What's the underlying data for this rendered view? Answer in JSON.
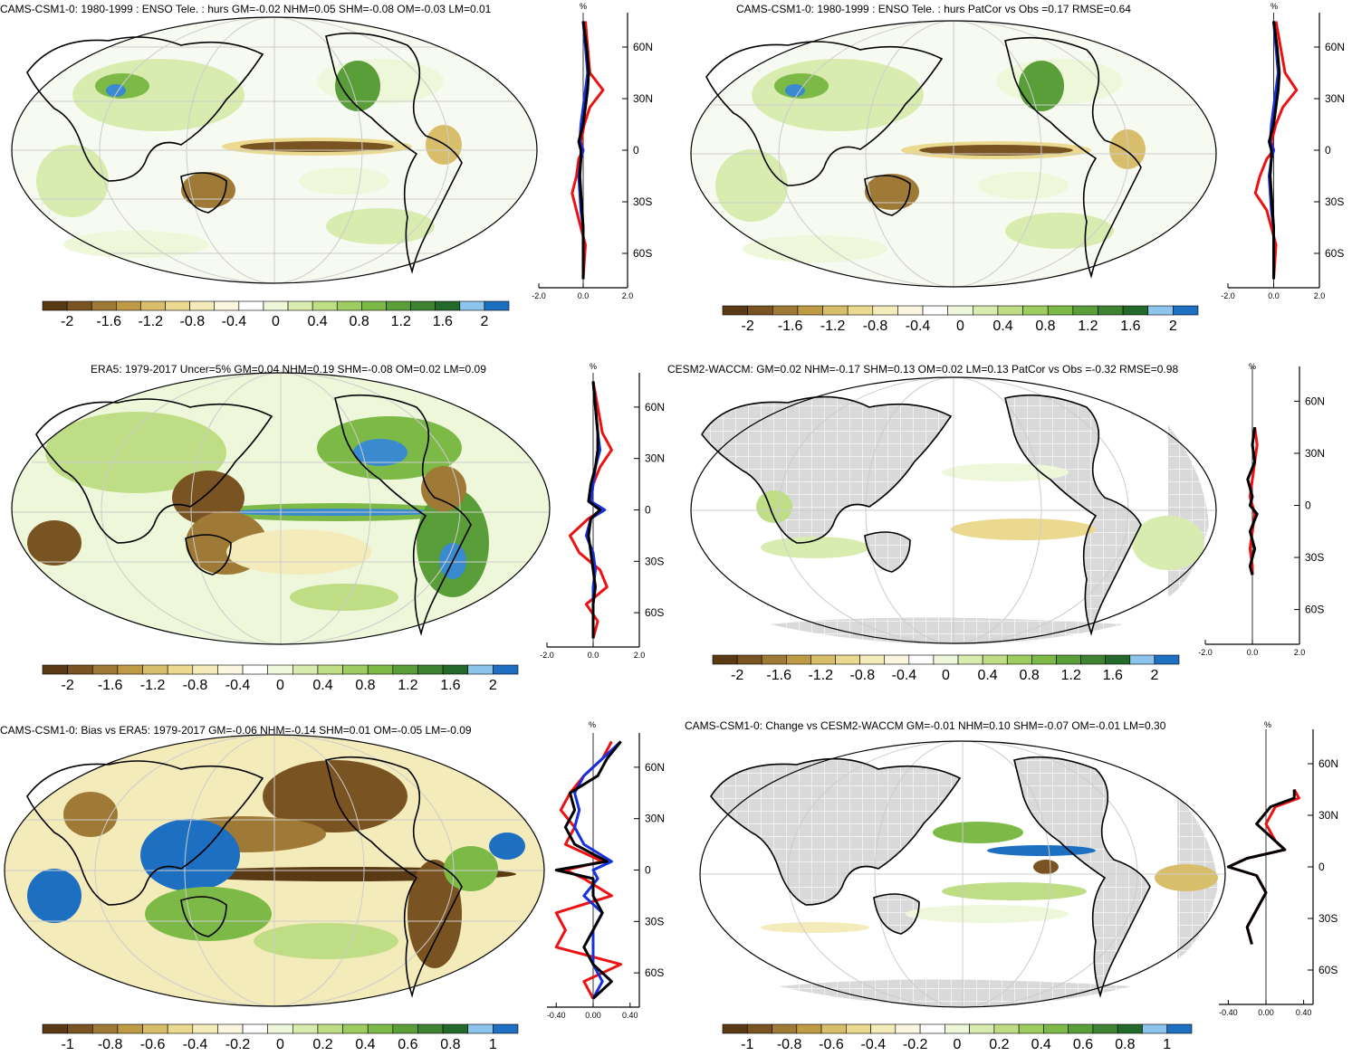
{
  "colors": {
    "scale": [
      "#5a3a14",
      "#7a5322",
      "#9e7a36",
      "#bf9a45",
      "#d8be6a",
      "#ead98f",
      "#f4ebbb",
      "#fbf6df",
      "#ffffff",
      "#eef7da",
      "#d8ecb0",
      "#bedd85",
      "#9fcc60",
      "#7db947",
      "#5a9e39",
      "#3d8332",
      "#236a2a",
      "#8cc4ec",
      "#1d6fc2"
    ],
    "land_gray": "#d9d9d9",
    "grid": "#c8c8c8",
    "model_line": "#1530e0",
    "obs_line": "#ee1111",
    "mean_line": "#000000"
  },
  "panels": [
    {
      "title": "CAMS-CSM1-0: 1980-1999 : ENSO Tele. : hurs GM=-0.02 NHM=0.05 SHM=-0.08 OM=-0.03 LM=0.01",
      "colorbar_labels": [
        "-2",
        "-1.6",
        "-1.2",
        "-0.8",
        "-0.4",
        "0",
        "0.4",
        "0.8",
        "1.2",
        "1.6",
        "2"
      ],
      "profile": {
        "unit": "%",
        "lat_labels": [
          "60N",
          "30N",
          "0",
          "30S",
          "60S"
        ],
        "x_labels": [
          "-2.0",
          "0.0",
          "2.0"
        ]
      }
    },
    {
      "title": "CAMS-CSM1-0: 1980-1999 : ENSO Tele. : hurs PatCor vs Obs =0.17 RMSE=0.64",
      "colorbar_labels": [
        "-2",
        "-1.6",
        "-1.2",
        "-0.8",
        "-0.4",
        "0",
        "0.4",
        "0.8",
        "1.2",
        "1.6",
        "2"
      ],
      "profile": {
        "unit": "%",
        "lat_labels": [
          "60N",
          "30N",
          "0",
          "30S",
          "60S"
        ],
        "x_labels": [
          "-2.0",
          "0.0",
          "2.0"
        ]
      }
    },
    {
      "title": "ERA5: 1979-2017 Uncer=5% GM=0.04 NHM=0.19 SHM=-0.08 OM=0.02 LM=0.09",
      "colorbar_labels": [
        "-2",
        "-1.6",
        "-1.2",
        "-0.8",
        "-0.4",
        "0",
        "0.4",
        "0.8",
        "1.2",
        "1.6",
        "2"
      ],
      "profile": {
        "unit": "%",
        "lat_labels": [
          "60N",
          "30N",
          "0",
          "30S",
          "60S"
        ],
        "x_labels": [
          "-2.0",
          "0.0",
          "2.0"
        ]
      }
    },
    {
      "title": "CESM2-WACCM: GM=0.02 NHM=-0.17 SHM=0.13 OM=0.02 LM=0.13 PatCor vs Obs =-0.32 RMSE=0.98",
      "colorbar_labels": [
        "-2",
        "-1.6",
        "-1.2",
        "-0.8",
        "-0.4",
        "0",
        "0.4",
        "0.8",
        "1.2",
        "1.6",
        "2"
      ],
      "profile": {
        "unit": "%",
        "lat_labels": [
          "60N",
          "30N",
          "0",
          "30S",
          "60S"
        ],
        "x_labels": [
          "-2.0",
          "0.0",
          "2.0"
        ]
      }
    },
    {
      "title": "CAMS-CSM1-0: Bias vs ERA5: 1979-2017 GM=-0.06 NHM=-0.14 SHM=0.01 OM=-0.05 LM=-0.09",
      "colorbar_labels": [
        "-1",
        "-0.8",
        "-0.6",
        "-0.4",
        "-0.2",
        "0",
        "0.2",
        "0.4",
        "0.6",
        "0.8",
        "1"
      ],
      "profile": {
        "unit": "%",
        "lat_labels": [
          "60N",
          "30N",
          "0",
          "30S",
          "60S"
        ],
        "x_labels": [
          "-0.40",
          "0.00",
          "0.40"
        ]
      }
    },
    {
      "title": "CAMS-CSM1-0: Change vs CESM2-WACCM GM=-0.01 NHM=0.10 SHM=-0.07 OM=-0.01 LM=0.30",
      "colorbar_labels": [
        "-1",
        "-0.8",
        "-0.6",
        "-0.4",
        "-0.2",
        "0",
        "0.2",
        "0.4",
        "0.6",
        "0.8",
        "1"
      ],
      "profile": {
        "unit": "%",
        "lat_labels": [
          "60N",
          "30N",
          "0",
          "30S",
          "60S"
        ],
        "x_labels": [
          "-0.40",
          "0.00",
          "0.40"
        ]
      }
    }
  ],
  "chart_data": [
    {
      "type": "heatmap",
      "title": "CAMS-CSM1-0: 1980-1999 : ENSO Tele. : hurs GM=-0.02 NHM=0.05 SHM=-0.08 OM=-0.03 LM=0.01",
      "colorbar": {
        "levels": [
          -2.2,
          -2,
          -1.8,
          -1.6,
          -1.4,
          -1.2,
          -1,
          -0.8,
          -0.6,
          -0.4,
          -0.2,
          0.2,
          0.4,
          0.6,
          0.8,
          1,
          1.2,
          1.4,
          1.6,
          2
        ],
        "ticks": [
          "-2",
          "-1.6",
          "-1.2",
          "-0.8",
          "-0.4",
          "0",
          "0.4",
          "0.8",
          "1.2",
          "1.6",
          "2"
        ]
      },
      "zonal_profile": {
        "unit": "%",
        "xlim": [
          -2,
          2
        ],
        "ylim": [
          -80,
          80
        ],
        "lat": [
          75,
          60,
          45,
          35,
          25,
          15,
          5,
          0,
          -5,
          -15,
          -25,
          -35,
          -45,
          -55,
          -65,
          -75
        ],
        "series": [
          {
            "color": "red",
            "values": [
              0.1,
              0.2,
              0.3,
              0.9,
              0.3,
              0.05,
              -0.1,
              0.0,
              -0.2,
              -0.3,
              -0.5,
              -0.3,
              -0.1,
              0.1,
              0.05,
              0.0
            ]
          },
          {
            "color": "blue",
            "values": [
              0.0,
              0.1,
              0.2,
              0.1,
              0.0,
              -0.1,
              -0.15,
              0.0,
              -0.1,
              -0.2,
              -0.15,
              -0.1,
              0.0,
              0.0,
              0.0,
              0.0
            ]
          },
          {
            "color": "black",
            "values": [
              0.0,
              0.15,
              0.25,
              0.2,
              0.1,
              0.0,
              -0.2,
              -0.1,
              -0.1,
              -0.15,
              -0.1,
              -0.05,
              0.0,
              0.0,
              0.0,
              0.0
            ]
          }
        ]
      }
    },
    {
      "type": "heatmap",
      "title": "CAMS-CSM1-0: 1980-1999 : ENSO Tele. : hurs PatCor vs Obs =0.17 RMSE=0.64",
      "colorbar": {
        "ticks": [
          "-2",
          "-1.6",
          "-1.2",
          "-0.8",
          "-0.4",
          "0",
          "0.4",
          "0.8",
          "1.2",
          "1.6",
          "2"
        ]
      },
      "zonal_profile": {
        "unit": "%",
        "xlim": [
          -2,
          2
        ],
        "ylim": [
          -80,
          80
        ],
        "lat": [
          75,
          60,
          45,
          35,
          25,
          15,
          5,
          0,
          -5,
          -15,
          -25,
          -35,
          -45,
          -55,
          -65,
          -75
        ],
        "series": [
          {
            "color": "red",
            "values": [
              0.1,
              0.3,
              0.5,
              1.0,
              0.4,
              0.1,
              -0.1,
              0.0,
              -0.3,
              -0.6,
              -0.8,
              -0.3,
              -0.1,
              0.1,
              0.05,
              0.0
            ]
          },
          {
            "color": "blue",
            "values": [
              0.0,
              0.1,
              0.2,
              0.1,
              0.0,
              -0.1,
              -0.15,
              0.0,
              -0.1,
              -0.2,
              -0.15,
              -0.1,
              0.0,
              0.0,
              0.0,
              0.0
            ]
          },
          {
            "color": "black",
            "values": [
              0.0,
              0.15,
              0.25,
              0.2,
              0.1,
              0.0,
              -0.2,
              -0.1,
              -0.1,
              -0.15,
              -0.1,
              -0.05,
              0.0,
              0.0,
              0.0,
              0.0
            ]
          }
        ]
      }
    },
    {
      "type": "heatmap",
      "title": "ERA5: 1979-2017 Uncer=5% GM=0.04 NHM=0.19 SHM=-0.08 OM=0.02 LM=0.09",
      "colorbar": {
        "ticks": [
          "-2",
          "-1.6",
          "-1.2",
          "-0.8",
          "-0.4",
          "0",
          "0.4",
          "0.8",
          "1.2",
          "1.6",
          "2"
        ]
      },
      "zonal_profile": {
        "unit": "%",
        "xlim": [
          -2,
          2
        ],
        "ylim": [
          -80,
          80
        ],
        "lat": [
          75,
          60,
          45,
          35,
          25,
          15,
          5,
          0,
          -5,
          -15,
          -25,
          -35,
          -45,
          -55,
          -65,
          -75
        ],
        "series": [
          {
            "color": "red",
            "values": [
              0.0,
              0.2,
              0.4,
              0.8,
              0.3,
              0.0,
              -0.1,
              0.4,
              -0.2,
              -1.0,
              -0.6,
              0.3,
              0.6,
              -0.3,
              0.2,
              0.0
            ]
          },
          {
            "color": "blue",
            "values": [
              0.0,
              0.1,
              0.2,
              0.3,
              0.1,
              0.0,
              -0.1,
              0.5,
              -0.1,
              -0.3,
              0.0,
              0.1,
              0.0,
              0.0,
              0.0,
              0.0
            ]
          },
          {
            "color": "black",
            "values": [
              0.0,
              0.1,
              0.2,
              0.2,
              0.1,
              -0.1,
              -0.2,
              0.3,
              -0.1,
              -0.2,
              -0.1,
              0.0,
              0.1,
              0.0,
              0.0,
              0.0
            ]
          }
        ]
      }
    },
    {
      "type": "heatmap",
      "title": "CESM2-WACCM: GM=0.02 NHM=-0.17 SHM=0.13 OM=0.02 LM=0.13 PatCor vs Obs =-0.32 RMSE=0.98",
      "colorbar": {
        "ticks": [
          "-2",
          "-1.6",
          "-1.2",
          "-0.8",
          "-0.4",
          "0",
          "0.4",
          "0.8",
          "1.2",
          "1.6",
          "2"
        ]
      },
      "zonal_profile": {
        "unit": "%",
        "xlim": [
          -2,
          2
        ],
        "ylim": [
          -80,
          80
        ],
        "lat": [
          45,
          35,
          25,
          15,
          5,
          0,
          -5,
          -15,
          -25,
          -35,
          -40
        ],
        "series": [
          {
            "color": "red",
            "values": [
              0.1,
              0.2,
              0.1,
              0.0,
              -0.1,
              0.0,
              0.1,
              0.0,
              -0.1,
              0.0,
              0.0
            ]
          },
          {
            "color": "black",
            "values": [
              0.1,
              0.0,
              0.1,
              -0.2,
              0.0,
              -0.1,
              0.2,
              -0.1,
              0.1,
              -0.1,
              0.0
            ]
          }
        ]
      }
    },
    {
      "type": "heatmap",
      "title": "CAMS-CSM1-0: Bias vs ERA5: 1979-2017 GM=-0.06 NHM=-0.14 SHM=0.01 OM=-0.05 LM=-0.09",
      "colorbar": {
        "ticks": [
          "-1",
          "-0.8",
          "-0.6",
          "-0.4",
          "-0.2",
          "0",
          "0.2",
          "0.4",
          "0.6",
          "0.8",
          "1"
        ]
      },
      "zonal_profile": {
        "unit": "%",
        "xlim": [
          -0.5,
          0.5
        ],
        "ylim": [
          -80,
          80
        ],
        "lat": [
          75,
          65,
          55,
          45,
          35,
          25,
          15,
          5,
          0,
          -5,
          -15,
          -25,
          -35,
          -45,
          -55,
          -65,
          -75
        ],
        "series": [
          {
            "color": "red",
            "values": [
              0.2,
              0.1,
              -0.1,
              -0.25,
              -0.35,
              -0.2,
              -0.3,
              0.1,
              -0.3,
              -0.1,
              0.2,
              -0.4,
              -0.3,
              -0.4,
              0.3,
              -0.1,
              0.0
            ]
          },
          {
            "color": "blue",
            "values": [
              0.3,
              0.1,
              -0.1,
              -0.2,
              -0.15,
              -0.2,
              -0.1,
              0.2,
              0.0,
              0.05,
              -0.1,
              0.1,
              0.0,
              0.0,
              0.0,
              0.1,
              0.0
            ]
          },
          {
            "color": "black",
            "values": [
              0.3,
              0.15,
              0.05,
              -0.25,
              -0.2,
              -0.3,
              -0.2,
              0.15,
              -0.4,
              0.0,
              0.0,
              0.1,
              0.0,
              -0.1,
              0.0,
              0.2,
              0.0
            ]
          }
        ]
      }
    },
    {
      "type": "heatmap",
      "title": "CAMS-CSM1-0: Change vs CESM2-WACCM GM=-0.01 NHM=0.10 SHM=-0.07 OM=-0.01 LM=0.30",
      "colorbar": {
        "ticks": [
          "-1",
          "-0.8",
          "-0.6",
          "-0.4",
          "-0.2",
          "0",
          "0.2",
          "0.4",
          "0.6",
          "0.8",
          "1"
        ]
      },
      "zonal_profile": {
        "unit": "%",
        "xlim": [
          -0.5,
          0.5
        ],
        "ylim": [
          -80,
          80
        ],
        "lat": [
          45,
          40,
          35,
          25,
          15,
          10,
          5,
          0,
          -5,
          -15,
          -25,
          -35,
          -45
        ],
        "series": [
          {
            "color": "red",
            "values": [
              0.3,
              0.35,
              0.1,
              0.0,
              0.1,
              0.2,
              -0.2,
              -0.4,
              -0.1,
              0.0,
              -0.1,
              -0.2,
              -0.15
            ]
          },
          {
            "color": "black",
            "values": [
              0.3,
              0.3,
              0.05,
              -0.1,
              0.1,
              0.2,
              -0.2,
              -0.4,
              -0.1,
              0.0,
              -0.1,
              -0.2,
              -0.15
            ]
          }
        ]
      }
    }
  ]
}
